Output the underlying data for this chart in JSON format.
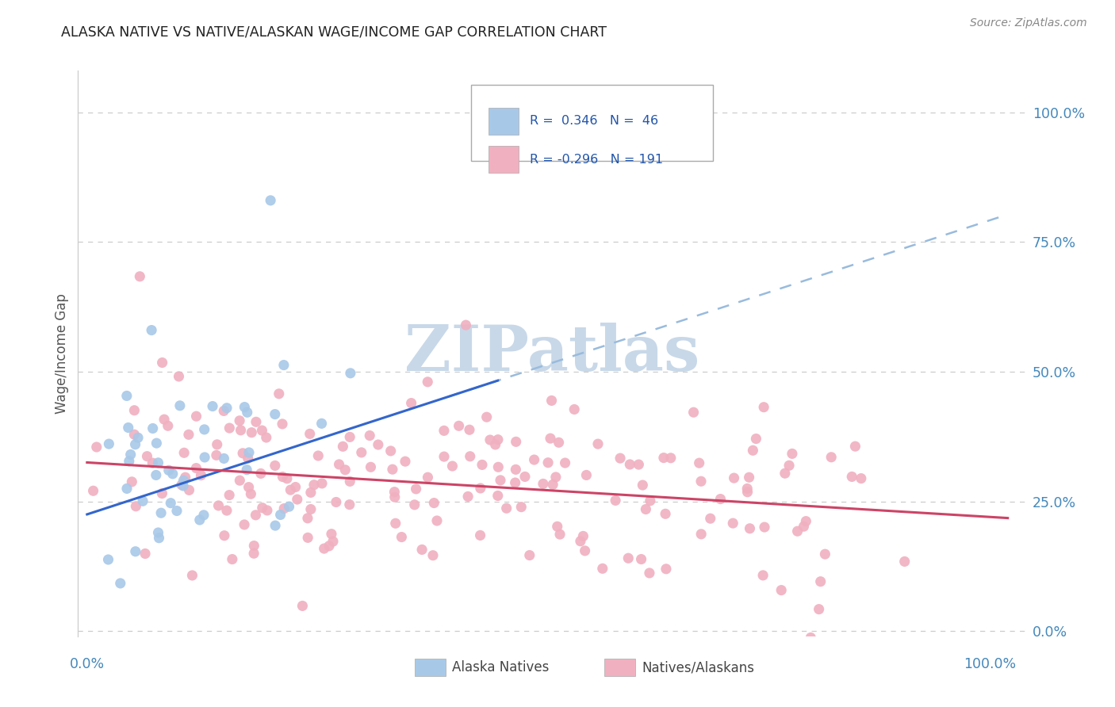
{
  "title": "ALASKA NATIVE VS NATIVE/ALASKAN WAGE/INCOME GAP CORRELATION CHART",
  "source": "Source: ZipAtlas.com",
  "ylabel": "Wage/Income Gap",
  "legend_label_blue": "Alaska Natives",
  "legend_label_pink": "Natives/Alaskans",
  "blue_color": "#A8C8E8",
  "pink_color": "#F0B0C0",
  "blue_line_color": "#3366CC",
  "pink_line_color": "#CC4466",
  "dashed_line_color": "#99BBDD",
  "title_color": "#222222",
  "axis_tick_color": "#4488BB",
  "text_color": "#2255AA",
  "watermark_color": "#C8D8E8",
  "background_color": "#FFFFFF",
  "grid_color": "#CCCCCC",
  "r_blue": 0.346,
  "n_blue": 46,
  "r_pink": -0.296,
  "n_pink": 191,
  "blue_seed": 42,
  "pink_seed": 99,
  "xlim": [
    0.0,
    1.0
  ],
  "ylim": [
    0.0,
    1.0
  ],
  "yticks": [
    0.0,
    0.25,
    0.5,
    0.75,
    1.0
  ],
  "ytick_labels": [
    "0.0%",
    "25.0%",
    "50.0%",
    "75.0%",
    "100.0%"
  ]
}
